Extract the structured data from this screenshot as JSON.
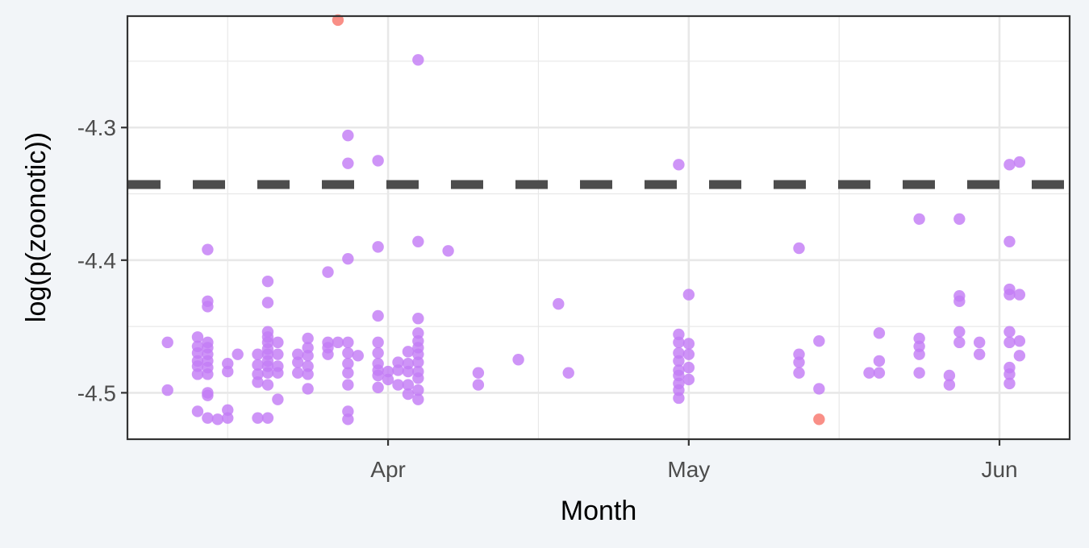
{
  "chart_data": {
    "type": "scatter",
    "title": "",
    "xlabel": "Month",
    "ylabel": "log(p(zoonotic))",
    "x_ticks": [
      {
        "date": "2020-04-01",
        "label": "Apr"
      },
      {
        "date": "2020-05-01",
        "label": "May"
      },
      {
        "date": "2020-06-01",
        "label": "Jun"
      }
    ],
    "x_minor_ticks": [
      "2020-03-16",
      "2020-04-16",
      "2020-05-16"
    ],
    "xlim": [
      "2020-03-06",
      "2020-06-08"
    ],
    "y_ticks": [
      -4.3,
      -4.4,
      -4.5
    ],
    "y_tick_labels": [
      "-4.3",
      "-4.4",
      "-4.5"
    ],
    "y_minor_ticks": [
      -4.25,
      -4.35,
      -4.45
    ],
    "ylim": [
      -4.535,
      -4.216
    ],
    "threshold": {
      "y": -4.343,
      "style": "dashed",
      "color": "#4d4d4d"
    },
    "grid": true,
    "legend": "none",
    "colors": {
      "panel_bg": "#ffffff",
      "page_bg": "#f2f5f8",
      "grid": "#e8e8e8",
      "frame": "#333333"
    },
    "series": [
      {
        "color": "#c37cf5",
        "points": [
          [
            "2020-03-10",
            -4.462
          ],
          [
            "2020-03-10",
            -4.498
          ],
          [
            "2020-03-13",
            -4.458
          ],
          [
            "2020-03-13",
            -4.465
          ],
          [
            "2020-03-13",
            -4.47
          ],
          [
            "2020-03-13",
            -4.476
          ],
          [
            "2020-03-13",
            -4.48
          ],
          [
            "2020-03-13",
            -4.486
          ],
          [
            "2020-03-13",
            -4.514
          ],
          [
            "2020-03-14",
            -4.392
          ],
          [
            "2020-03-14",
            -4.431
          ],
          [
            "2020-03-14",
            -4.435
          ],
          [
            "2020-03-14",
            -4.462
          ],
          [
            "2020-03-14",
            -4.466
          ],
          [
            "2020-03-14",
            -4.471
          ],
          [
            "2020-03-14",
            -4.476
          ],
          [
            "2020-03-14",
            -4.481
          ],
          [
            "2020-03-14",
            -4.486
          ],
          [
            "2020-03-14",
            -4.5
          ],
          [
            "2020-03-14",
            -4.502
          ],
          [
            "2020-03-14",
            -4.519
          ],
          [
            "2020-03-15",
            -4.52
          ],
          [
            "2020-03-16",
            -4.478
          ],
          [
            "2020-03-16",
            -4.484
          ],
          [
            "2020-03-16",
            -4.513
          ],
          [
            "2020-03-16",
            -4.519
          ],
          [
            "2020-03-17",
            -4.471
          ],
          [
            "2020-03-19",
            -4.471
          ],
          [
            "2020-03-19",
            -4.479
          ],
          [
            "2020-03-19",
            -4.486
          ],
          [
            "2020-03-19",
            -4.492
          ],
          [
            "2020-03-19",
            -4.519
          ],
          [
            "2020-03-20",
            -4.416
          ],
          [
            "2020-03-20",
            -4.432
          ],
          [
            "2020-03-20",
            -4.454
          ],
          [
            "2020-03-20",
            -4.458
          ],
          [
            "2020-03-20",
            -4.462
          ],
          [
            "2020-03-20",
            -4.467
          ],
          [
            "2020-03-20",
            -4.471
          ],
          [
            "2020-03-20",
            -4.476
          ],
          [
            "2020-03-20",
            -4.48
          ],
          [
            "2020-03-20",
            -4.485
          ],
          [
            "2020-03-20",
            -4.494
          ],
          [
            "2020-03-20",
            -4.519
          ],
          [
            "2020-03-21",
            -4.462
          ],
          [
            "2020-03-21",
            -4.471
          ],
          [
            "2020-03-21",
            -4.48
          ],
          [
            "2020-03-21",
            -4.485
          ],
          [
            "2020-03-21",
            -4.505
          ],
          [
            "2020-03-23",
            -4.471
          ],
          [
            "2020-03-23",
            -4.477
          ],
          [
            "2020-03-23",
            -4.485
          ],
          [
            "2020-03-24",
            -4.459
          ],
          [
            "2020-03-24",
            -4.466
          ],
          [
            "2020-03-24",
            -4.472
          ],
          [
            "2020-03-24",
            -4.48
          ],
          [
            "2020-03-24",
            -4.486
          ],
          [
            "2020-03-24",
            -4.497
          ],
          [
            "2020-03-26",
            -4.409
          ],
          [
            "2020-03-26",
            -4.462
          ],
          [
            "2020-03-26",
            -4.466
          ],
          [
            "2020-03-26",
            -4.471
          ],
          [
            "2020-03-27",
            -4.462
          ],
          [
            "2020-03-28",
            -4.306
          ],
          [
            "2020-03-28",
            -4.327
          ],
          [
            "2020-03-28",
            -4.399
          ],
          [
            "2020-03-28",
            -4.462
          ],
          [
            "2020-03-28",
            -4.47
          ],
          [
            "2020-03-28",
            -4.478
          ],
          [
            "2020-03-28",
            -4.485
          ],
          [
            "2020-03-28",
            -4.494
          ],
          [
            "2020-03-28",
            -4.514
          ],
          [
            "2020-03-28",
            -4.52
          ],
          [
            "2020-03-29",
            -4.472
          ],
          [
            "2020-03-31",
            -4.325
          ],
          [
            "2020-03-31",
            -4.39
          ],
          [
            "2020-03-31",
            -4.442
          ],
          [
            "2020-03-31",
            -4.462
          ],
          [
            "2020-03-31",
            -4.47
          ],
          [
            "2020-03-31",
            -4.478
          ],
          [
            "2020-03-31",
            -4.483
          ],
          [
            "2020-03-31",
            -4.487
          ],
          [
            "2020-03-31",
            -4.496
          ],
          [
            "2020-04-01",
            -4.484
          ],
          [
            "2020-04-01",
            -4.49
          ],
          [
            "2020-04-02",
            -4.477
          ],
          [
            "2020-04-02",
            -4.483
          ],
          [
            "2020-04-02",
            -4.494
          ],
          [
            "2020-04-03",
            -4.469
          ],
          [
            "2020-04-03",
            -4.478
          ],
          [
            "2020-04-03",
            -4.484
          ],
          [
            "2020-04-03",
            -4.494
          ],
          [
            "2020-04-03",
            -4.501
          ],
          [
            "2020-04-04",
            -4.249
          ],
          [
            "2020-04-04",
            -4.386
          ],
          [
            "2020-04-04",
            -4.444
          ],
          [
            "2020-04-04",
            -4.455
          ],
          [
            "2020-04-04",
            -4.461
          ],
          [
            "2020-04-04",
            -4.466
          ],
          [
            "2020-04-04",
            -4.471
          ],
          [
            "2020-04-04",
            -4.477
          ],
          [
            "2020-04-04",
            -4.484
          ],
          [
            "2020-04-04",
            -4.489
          ],
          [
            "2020-04-04",
            -4.498
          ],
          [
            "2020-04-04",
            -4.505
          ],
          [
            "2020-04-07",
            -4.393
          ],
          [
            "2020-04-10",
            -4.485
          ],
          [
            "2020-04-10",
            -4.494
          ],
          [
            "2020-04-14",
            -4.475
          ],
          [
            "2020-04-18",
            -4.433
          ],
          [
            "2020-04-19",
            -4.485
          ],
          [
            "2020-04-30",
            -4.328
          ],
          [
            "2020-04-30",
            -4.456
          ],
          [
            "2020-04-30",
            -4.462
          ],
          [
            "2020-04-30",
            -4.47
          ],
          [
            "2020-04-30",
            -4.476
          ],
          [
            "2020-04-30",
            -4.483
          ],
          [
            "2020-04-30",
            -4.487
          ],
          [
            "2020-04-30",
            -4.493
          ],
          [
            "2020-04-30",
            -4.498
          ],
          [
            "2020-04-30",
            -4.504
          ],
          [
            "2020-05-01",
            -4.426
          ],
          [
            "2020-05-01",
            -4.463
          ],
          [
            "2020-05-01",
            -4.471
          ],
          [
            "2020-05-01",
            -4.481
          ],
          [
            "2020-05-01",
            -4.49
          ],
          [
            "2020-05-12",
            -4.391
          ],
          [
            "2020-05-12",
            -4.471
          ],
          [
            "2020-05-12",
            -4.477
          ],
          [
            "2020-05-12",
            -4.485
          ],
          [
            "2020-05-14",
            -4.461
          ],
          [
            "2020-05-14",
            -4.497
          ],
          [
            "2020-05-19",
            -4.485
          ],
          [
            "2020-05-20",
            -4.455
          ],
          [
            "2020-05-20",
            -4.476
          ],
          [
            "2020-05-20",
            -4.485
          ],
          [
            "2020-05-24",
            -4.369
          ],
          [
            "2020-05-24",
            -4.459
          ],
          [
            "2020-05-24",
            -4.465
          ],
          [
            "2020-05-24",
            -4.471
          ],
          [
            "2020-05-24",
            -4.485
          ],
          [
            "2020-05-27",
            -4.487
          ],
          [
            "2020-05-27",
            -4.494
          ],
          [
            "2020-05-28",
            -4.369
          ],
          [
            "2020-05-28",
            -4.427
          ],
          [
            "2020-05-28",
            -4.431
          ],
          [
            "2020-05-28",
            -4.454
          ],
          [
            "2020-05-28",
            -4.462
          ],
          [
            "2020-05-30",
            -4.462
          ],
          [
            "2020-05-30",
            -4.471
          ],
          [
            "2020-06-02",
            -4.328
          ],
          [
            "2020-06-02",
            -4.386
          ],
          [
            "2020-06-02",
            -4.422
          ],
          [
            "2020-06-02",
            -4.426
          ],
          [
            "2020-06-02",
            -4.454
          ],
          [
            "2020-06-02",
            -4.462
          ],
          [
            "2020-06-02",
            -4.481
          ],
          [
            "2020-06-02",
            -4.486
          ],
          [
            "2020-06-02",
            -4.493
          ],
          [
            "2020-06-03",
            -4.326
          ],
          [
            "2020-06-03",
            -4.426
          ],
          [
            "2020-06-03",
            -4.461
          ],
          [
            "2020-06-03",
            -4.472
          ]
        ]
      },
      {
        "color": "#f8766d",
        "points": [
          [
            "2020-03-27",
            -4.219
          ],
          [
            "2020-05-14",
            -4.52
          ]
        ]
      }
    ]
  }
}
